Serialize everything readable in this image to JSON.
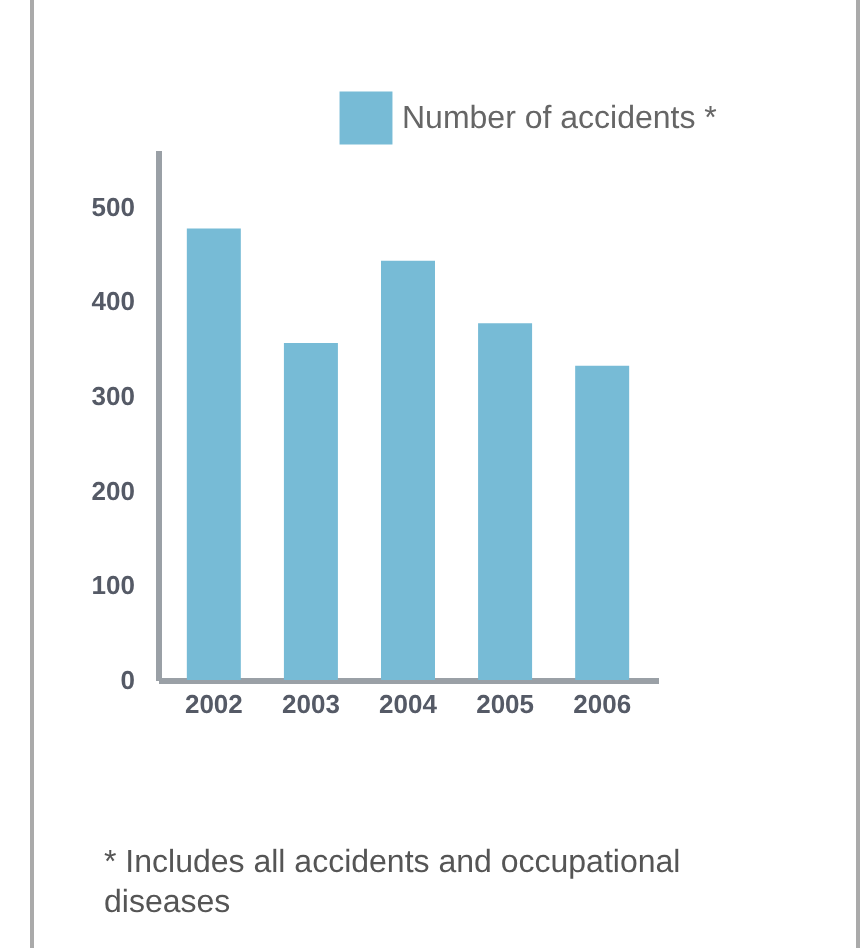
{
  "chart_data": {
    "type": "bar",
    "categories": [
      "2002",
      "2003",
      "2004",
      "2005",
      "2006"
    ],
    "series": [
      {
        "name": "Number of accidents *",
        "color": "#77bbd6",
        "values": [
          477,
          356,
          443,
          377,
          332
        ]
      }
    ],
    "ylim": [
      0,
      560
    ],
    "yticks": [
      0,
      100,
      200,
      300,
      400,
      500
    ],
    "grid": false,
    "legend": "top right",
    "annotations": [
      "* Includes all accidents and occupational diseases"
    ]
  }
}
